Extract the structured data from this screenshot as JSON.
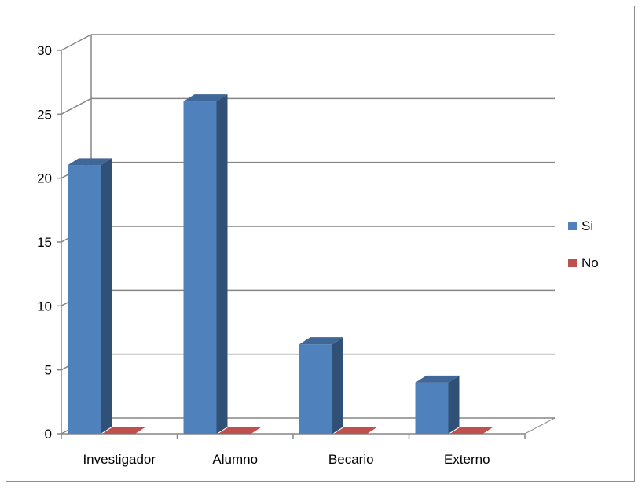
{
  "chart_data": {
    "type": "bar",
    "style": "3d-clustered-column",
    "categories": [
      "Investigador",
      "Alumno",
      "Becario",
      "Externo"
    ],
    "series": [
      {
        "name": "Si",
        "values": [
          21,
          26,
          7,
          4
        ],
        "color": "#4f81bd"
      },
      {
        "name": "No",
        "values": [
          0,
          0,
          0,
          0
        ],
        "color": "#c0504d"
      }
    ],
    "ylim": [
      0,
      30
    ],
    "yticks": [
      0,
      5,
      10,
      15,
      20,
      25,
      30
    ],
    "grid": true,
    "legend": "right"
  }
}
